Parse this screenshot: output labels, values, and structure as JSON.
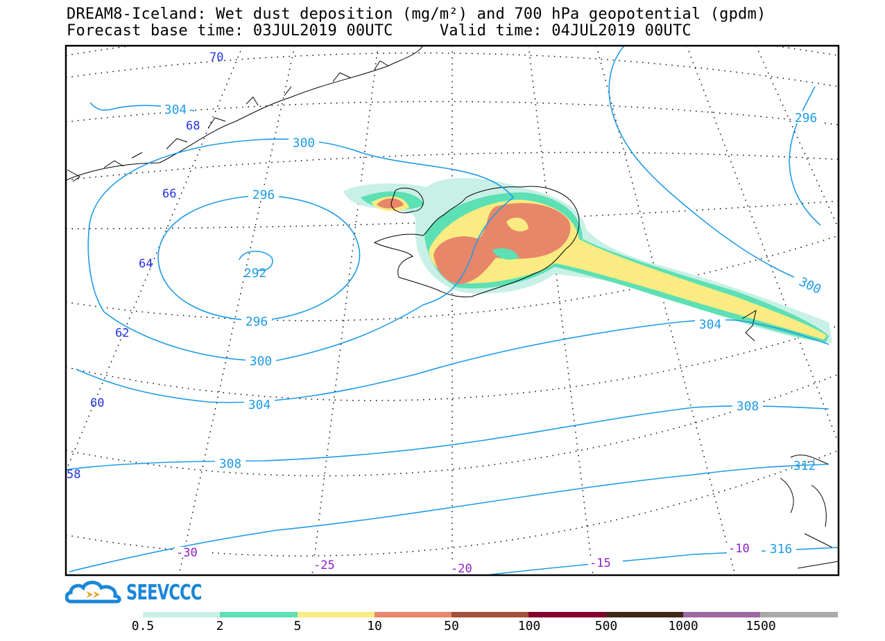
{
  "title": {
    "line1": "DREAM8-Iceland: Wet dust deposition (mg/m²) and 700 hPa geopotential (gpdm)",
    "base_label": "Forecast base time:",
    "base_time": "03JUL2019 00UTC",
    "valid_label": "Valid time:",
    "valid_time": "04JUL2019 00UTC"
  },
  "logo": {
    "text": "SEEVCCC",
    "color": "#1a86d8"
  },
  "map": {
    "projection": "polar stereographic",
    "gridlines": "dotted",
    "coastline_color": "#000000",
    "contour_color": "#1e9be6",
    "latitude_labels": [
      "70",
      "68",
      "66",
      "64",
      "62",
      "60",
      "58"
    ],
    "latitude_label_color": "#2233dd",
    "longitude_labels": [
      "-30",
      "-25",
      "-20",
      "-15",
      "-10"
    ],
    "longitude_label_color": "#8a1ec4",
    "contour_labels": [
      "304",
      "300",
      "296",
      "292",
      "296",
      "300",
      "304",
      "308",
      "312",
      "316",
      "296",
      "300",
      "304",
      "308"
    ]
  },
  "colorbar": {
    "ticks": [
      "0.5",
      "2",
      "5",
      "10",
      "50",
      "100",
      "500",
      "1000",
      "1500"
    ],
    "colors": [
      "#c8f0e6",
      "#5ce0b4",
      "#faeb82",
      "#e8866a",
      "#a3503c",
      "#82002a",
      "#412814",
      "#9a6aa0",
      "#aaaaaa"
    ]
  }
}
